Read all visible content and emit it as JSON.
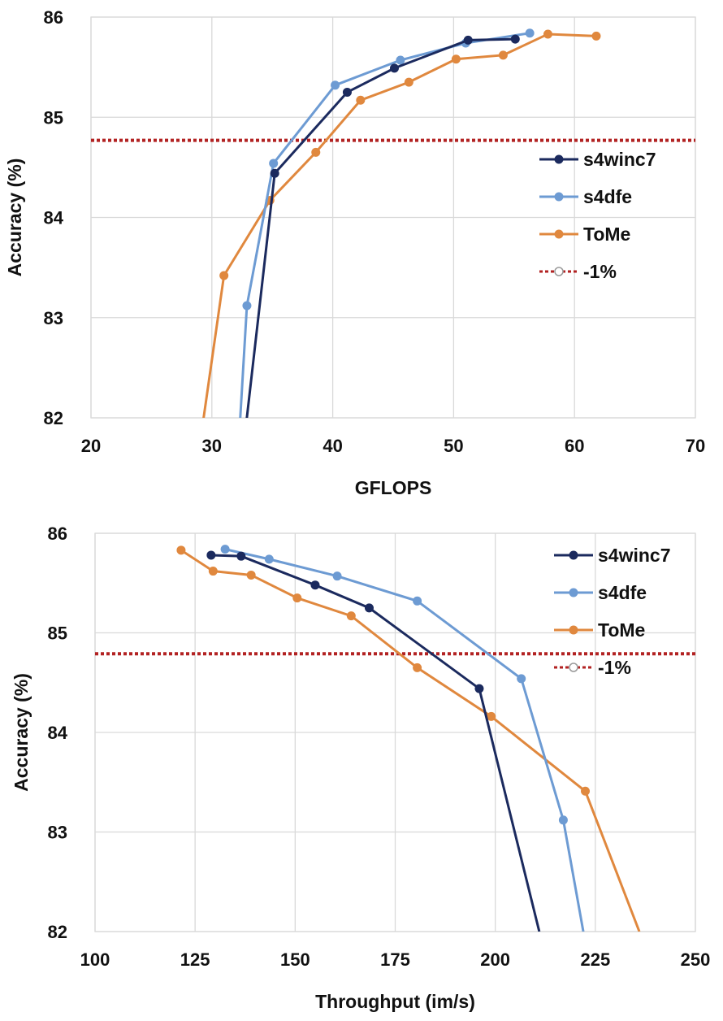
{
  "chart_data": [
    {
      "type": "line",
      "title": "",
      "xlabel": "GFLOPS",
      "ylabel": "Accuracy (%)",
      "xlim": [
        20,
        70
      ],
      "ylim": [
        82,
        86
      ],
      "xticks": [
        20,
        30,
        40,
        50,
        60,
        70
      ],
      "yticks": [
        82,
        83,
        84,
        85,
        86
      ],
      "grid": true,
      "legend_position": "right",
      "series": [
        {
          "name": "s4winc7",
          "color": "#1b2a5e",
          "points": [
            [
              32.8,
              81.9
            ],
            [
              35.2,
              84.44
            ],
            [
              41.2,
              85.25
            ],
            [
              45.1,
              85.49
            ],
            [
              51.2,
              85.77
            ],
            [
              55.1,
              85.78
            ]
          ]
        },
        {
          "name": "s4dfe",
          "color": "#6d9bd3",
          "points": [
            [
              32.3,
              81.9
            ],
            [
              32.9,
              83.12
            ],
            [
              35.1,
              84.54
            ],
            [
              40.2,
              85.32
            ],
            [
              45.6,
              85.57
            ],
            [
              51.0,
              85.74
            ],
            [
              56.3,
              85.84
            ]
          ]
        },
        {
          "name": "ToMe",
          "color": "#e0883e",
          "points": [
            [
              29.2,
              81.9
            ],
            [
              31.0,
              83.42
            ],
            [
              34.8,
              84.17
            ],
            [
              38.6,
              84.65
            ],
            [
              42.3,
              85.17
            ],
            [
              46.3,
              85.35
            ],
            [
              50.2,
              85.58
            ],
            [
              54.1,
              85.62
            ],
            [
              57.8,
              85.83
            ],
            [
              61.8,
              85.81
            ]
          ]
        }
      ],
      "reference_line": {
        "name": "-1%",
        "value": 84.77,
        "color": "#b22222",
        "style": "dotted"
      }
    },
    {
      "type": "line",
      "title": "",
      "xlabel": "Throughput (im/s)",
      "ylabel": "Accuracy (%)",
      "xlim": [
        100,
        250
      ],
      "ylim": [
        82,
        86
      ],
      "xticks": [
        100,
        125,
        150,
        175,
        200,
        225,
        250
      ],
      "yticks": [
        82,
        83,
        84,
        85,
        86
      ],
      "grid": true,
      "legend_position": "top-right",
      "series": [
        {
          "name": "s4winc7",
          "color": "#1b2a5e",
          "points": [
            [
              129,
              85.78
            ],
            [
              136.5,
              85.77
            ],
            [
              155,
              85.48
            ],
            [
              168.5,
              85.25
            ],
            [
              196,
              84.44
            ],
            [
              211,
              82.0
            ]
          ]
        },
        {
          "name": "s4dfe",
          "color": "#6d9bd3",
          "points": [
            [
              132.5,
              85.84
            ],
            [
              143.5,
              85.74
            ],
            [
              160.5,
              85.57
            ],
            [
              180.5,
              85.32
            ],
            [
              206.5,
              84.54
            ],
            [
              217,
              83.12
            ],
            [
              222,
              82.0
            ]
          ]
        },
        {
          "name": "ToMe",
          "color": "#e0883e",
          "points": [
            [
              121.5,
              85.83
            ],
            [
              129.5,
              85.62
            ],
            [
              139,
              85.58
            ],
            [
              150.5,
              85.35
            ],
            [
              164,
              85.17
            ],
            [
              180.5,
              84.65
            ],
            [
              199,
              84.16
            ],
            [
              222.5,
              83.41
            ],
            [
              236,
              82.0
            ]
          ]
        }
      ],
      "reference_line": {
        "name": "-1%",
        "value": 84.79,
        "color": "#b22222",
        "style": "dotted"
      }
    }
  ]
}
